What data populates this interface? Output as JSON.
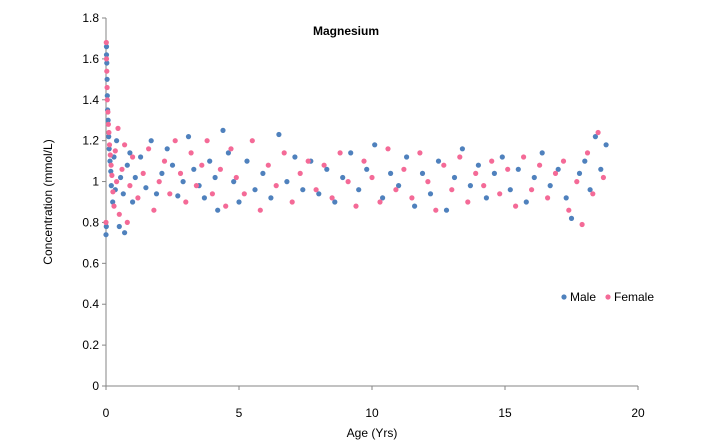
{
  "chart_data": {
    "type": "scatter",
    "title": "Magnesium",
    "xlabel": "Age (Yrs)",
    "ylabel": "Concentration (mmol/L)",
    "xlim": [
      0,
      20
    ],
    "ylim": [
      0,
      1.8
    ],
    "x_ticks": [
      "0",
      "5",
      "10",
      "15",
      "20"
    ],
    "y_ticks": [
      "0",
      "0.2",
      "0.4",
      "0.6",
      "0.8",
      "1",
      "1.2",
      "1.4",
      "1.6",
      "1.8"
    ],
    "grid": false,
    "legend_position": "right",
    "series": [
      {
        "name": "Male",
        "color": "#4F81BD",
        "points": [
          [
            0.0,
            0.74
          ],
          [
            0.01,
            0.78
          ],
          [
            0.02,
            1.66
          ],
          [
            0.02,
            1.62
          ],
          [
            0.03,
            1.58
          ],
          [
            0.04,
            1.5
          ],
          [
            0.05,
            1.42
          ],
          [
            0.06,
            1.35
          ],
          [
            0.08,
            1.3
          ],
          [
            0.1,
            1.22
          ],
          [
            0.12,
            1.16
          ],
          [
            0.15,
            1.1
          ],
          [
            0.18,
            1.05
          ],
          [
            0.2,
            0.98
          ],
          [
            0.25,
            0.9
          ],
          [
            0.3,
            1.12
          ],
          [
            0.35,
            0.96
          ],
          [
            0.4,
            1.2
          ],
          [
            0.5,
            0.78
          ],
          [
            0.55,
            1.02
          ],
          [
            0.65,
            0.94
          ],
          [
            0.7,
            0.75
          ],
          [
            0.8,
            1.08
          ],
          [
            0.9,
            1.14
          ],
          [
            1.0,
            0.9
          ],
          [
            1.1,
            1.02
          ],
          [
            1.3,
            1.12
          ],
          [
            1.5,
            0.97
          ],
          [
            1.7,
            1.2
          ],
          [
            1.9,
            0.94
          ],
          [
            2.1,
            1.04
          ],
          [
            2.3,
            1.16
          ],
          [
            2.5,
            1.08
          ],
          [
            2.7,
            0.93
          ],
          [
            2.9,
            1.0
          ],
          [
            3.1,
            1.22
          ],
          [
            3.3,
            1.06
          ],
          [
            3.5,
            0.98
          ],
          [
            3.7,
            0.92
          ],
          [
            3.9,
            1.1
          ],
          [
            4.1,
            1.02
          ],
          [
            4.2,
            0.86
          ],
          [
            4.4,
            1.25
          ],
          [
            4.6,
            1.14
          ],
          [
            4.8,
            1.0
          ],
          [
            5.0,
            0.9
          ],
          [
            5.3,
            1.1
          ],
          [
            5.6,
            0.96
          ],
          [
            5.9,
            1.04
          ],
          [
            6.2,
            0.92
          ],
          [
            6.5,
            1.23
          ],
          [
            6.8,
            1.0
          ],
          [
            7.1,
            1.12
          ],
          [
            7.4,
            0.96
          ],
          [
            7.7,
            1.1
          ],
          [
            8.0,
            0.94
          ],
          [
            8.3,
            1.06
          ],
          [
            8.6,
            0.9
          ],
          [
            8.9,
            1.02
          ],
          [
            9.2,
            1.14
          ],
          [
            9.5,
            0.96
          ],
          [
            9.8,
            1.06
          ],
          [
            10.1,
            1.18
          ],
          [
            10.4,
            0.92
          ],
          [
            10.7,
            1.04
          ],
          [
            11.0,
            0.98
          ],
          [
            11.3,
            1.12
          ],
          [
            11.6,
            0.88
          ],
          [
            11.9,
            1.04
          ],
          [
            12.2,
            0.94
          ],
          [
            12.5,
            1.1
          ],
          [
            12.8,
            0.86
          ],
          [
            13.1,
            1.02
          ],
          [
            13.4,
            1.16
          ],
          [
            13.7,
            0.98
          ],
          [
            14.0,
            1.08
          ],
          [
            14.3,
            0.92
          ],
          [
            14.6,
            1.04
          ],
          [
            14.9,
            1.12
          ],
          [
            15.2,
            0.96
          ],
          [
            15.5,
            1.06
          ],
          [
            15.8,
            0.9
          ],
          [
            16.1,
            1.02
          ],
          [
            16.4,
            1.14
          ],
          [
            16.7,
            0.98
          ],
          [
            17.0,
            1.06
          ],
          [
            17.3,
            0.92
          ],
          [
            17.5,
            0.82
          ],
          [
            17.8,
            1.04
          ],
          [
            18.0,
            1.1
          ],
          [
            18.2,
            0.96
          ],
          [
            18.4,
            1.22
          ],
          [
            18.6,
            1.06
          ],
          [
            18.8,
            1.18
          ]
        ]
      },
      {
        "name": "Female",
        "color": "#F46A97",
        "points": [
          [
            0.0,
            0.8
          ],
          [
            0.01,
            1.68
          ],
          [
            0.02,
            1.6
          ],
          [
            0.03,
            1.54
          ],
          [
            0.04,
            1.46
          ],
          [
            0.05,
            1.4
          ],
          [
            0.07,
            1.34
          ],
          [
            0.09,
            1.28
          ],
          [
            0.11,
            1.24
          ],
          [
            0.13,
            1.18
          ],
          [
            0.16,
            1.13
          ],
          [
            0.19,
            1.08
          ],
          [
            0.22,
            1.03
          ],
          [
            0.26,
            0.95
          ],
          [
            0.3,
            0.88
          ],
          [
            0.35,
            1.15
          ],
          [
            0.4,
            1.0
          ],
          [
            0.45,
            1.26
          ],
          [
            0.5,
            0.84
          ],
          [
            0.6,
            1.06
          ],
          [
            0.7,
            1.18
          ],
          [
            0.8,
            0.8
          ],
          [
            0.9,
            0.98
          ],
          [
            1.0,
            1.12
          ],
          [
            1.2,
            0.92
          ],
          [
            1.4,
            1.04
          ],
          [
            1.6,
            1.16
          ],
          [
            1.8,
            0.86
          ],
          [
            2.0,
            1.0
          ],
          [
            2.2,
            1.1
          ],
          [
            2.4,
            0.94
          ],
          [
            2.6,
            1.2
          ],
          [
            2.8,
            1.04
          ],
          [
            3.0,
            0.9
          ],
          [
            3.2,
            1.14
          ],
          [
            3.4,
            0.98
          ],
          [
            3.6,
            1.08
          ],
          [
            3.8,
            1.2
          ],
          [
            4.0,
            0.94
          ],
          [
            4.3,
            1.06
          ],
          [
            4.5,
            0.88
          ],
          [
            4.7,
            1.16
          ],
          [
            4.9,
            1.02
          ],
          [
            5.2,
            0.94
          ],
          [
            5.5,
            1.2
          ],
          [
            5.8,
            0.86
          ],
          [
            6.1,
            1.08
          ],
          [
            6.4,
            0.98
          ],
          [
            6.7,
            1.14
          ],
          [
            7.0,
            0.9
          ],
          [
            7.3,
            1.04
          ],
          [
            7.6,
            1.1
          ],
          [
            7.9,
            0.96
          ],
          [
            8.2,
            1.08
          ],
          [
            8.5,
            0.92
          ],
          [
            8.8,
            1.14
          ],
          [
            9.1,
            1.0
          ],
          [
            9.4,
            0.88
          ],
          [
            9.7,
            1.1
          ],
          [
            10.0,
            1.02
          ],
          [
            10.3,
            0.9
          ],
          [
            10.6,
            1.16
          ],
          [
            10.9,
            0.96
          ],
          [
            11.2,
            1.06
          ],
          [
            11.5,
            0.92
          ],
          [
            11.8,
            1.14
          ],
          [
            12.1,
            1.0
          ],
          [
            12.4,
            0.86
          ],
          [
            12.7,
            1.08
          ],
          [
            13.0,
            0.96
          ],
          [
            13.3,
            1.12
          ],
          [
            13.6,
            0.9
          ],
          [
            13.9,
            1.04
          ],
          [
            14.2,
            0.98
          ],
          [
            14.5,
            1.1
          ],
          [
            14.8,
            0.94
          ],
          [
            15.1,
            1.06
          ],
          [
            15.4,
            0.88
          ],
          [
            15.7,
            1.12
          ],
          [
            16.0,
            0.96
          ],
          [
            16.3,
            1.08
          ],
          [
            16.6,
            0.92
          ],
          [
            16.9,
            1.04
          ],
          [
            17.2,
            1.1
          ],
          [
            17.4,
            0.86
          ],
          [
            17.7,
            1.0
          ],
          [
            17.9,
            0.79
          ],
          [
            18.1,
            1.14
          ],
          [
            18.3,
            0.94
          ],
          [
            18.5,
            1.24
          ],
          [
            18.7,
            1.02
          ]
        ]
      }
    ]
  }
}
